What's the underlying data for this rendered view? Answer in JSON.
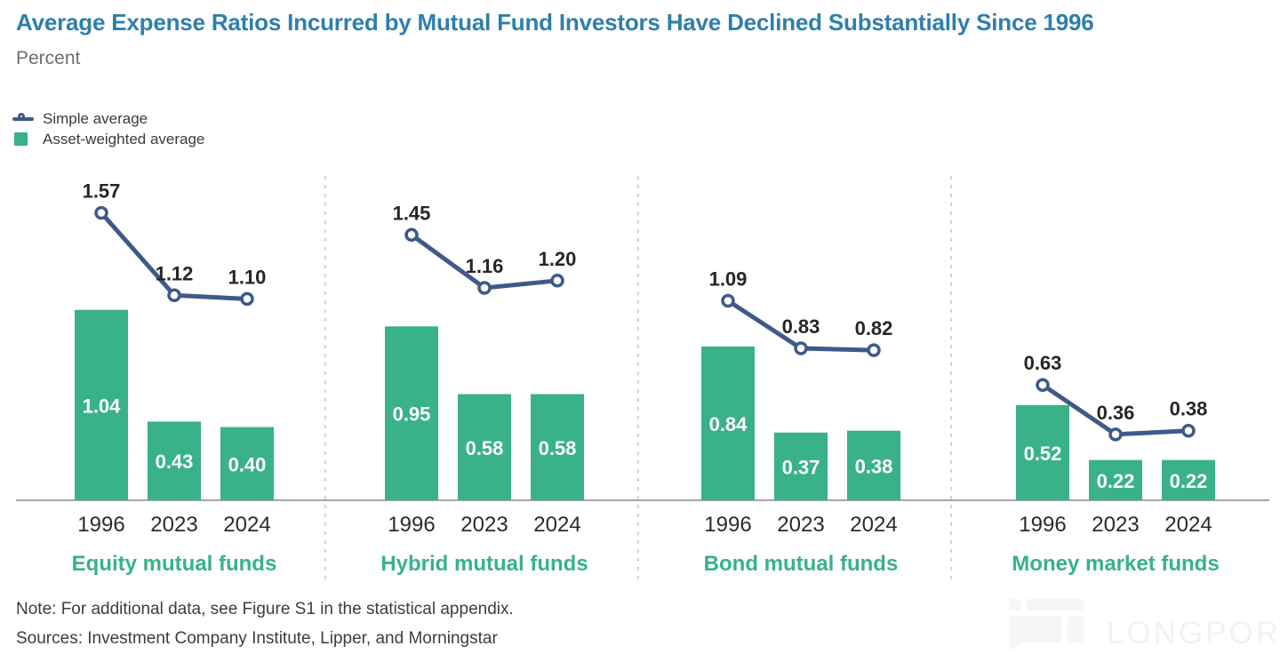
{
  "header": {
    "title": "Average Expense Ratios Incurred by Mutual Fund Investors Have Declined Substantially Since 1996",
    "subtitle": "Percent"
  },
  "legend": {
    "simple": "Simple average",
    "asset_weighted": "Asset-weighted average"
  },
  "chart_data": {
    "type": "bar",
    "overlay": "line",
    "title": "Average Expense Ratios Incurred by Mutual Fund Investors Have Declined Substantially Since 1996",
    "ylabel": "Percent",
    "ylim": [
      0,
      1.8
    ],
    "grid": false,
    "legend_position": "top-left",
    "categories": [
      "1996",
      "2023",
      "2024"
    ],
    "panels": [
      {
        "label": "Equity mutual funds",
        "series": [
          {
            "name": "Simple average",
            "type": "line",
            "values": [
              1.57,
              1.12,
              1.1
            ]
          },
          {
            "name": "Asset-weighted average",
            "type": "bar",
            "values": [
              1.04,
              0.43,
              0.4
            ]
          }
        ]
      },
      {
        "label": "Hybrid mutual funds",
        "series": [
          {
            "name": "Simple average",
            "type": "line",
            "values": [
              1.45,
              1.16,
              1.2
            ]
          },
          {
            "name": "Asset-weighted average",
            "type": "bar",
            "values": [
              0.95,
              0.58,
              0.58
            ]
          }
        ]
      },
      {
        "label": "Bond mutual funds",
        "series": [
          {
            "name": "Simple average",
            "type": "line",
            "values": [
              1.09,
              0.83,
              0.82
            ]
          },
          {
            "name": "Asset-weighted average",
            "type": "bar",
            "values": [
              0.84,
              0.37,
              0.38
            ]
          }
        ]
      },
      {
        "label": "Money market funds",
        "series": [
          {
            "name": "Simple average",
            "type": "line",
            "values": [
              0.63,
              0.36,
              0.38
            ]
          },
          {
            "name": "Asset-weighted average",
            "type": "bar",
            "values": [
              0.52,
              0.22,
              0.22
            ]
          }
        ]
      }
    ]
  },
  "footer": {
    "note": "Note: For additional data, see Figure S1 in the statistical appendix.",
    "sources": "Sources: Investment Company Institute, Lipper, and Morningstar"
  },
  "watermark": {
    "text": "LONGPORT"
  },
  "colors": {
    "title": "#2f7fab",
    "subtitle": "#6e6e6e",
    "bar": "#3ab287",
    "line": "#3e5a8a",
    "marker_fill": "#ffffff",
    "value_label": "#262626",
    "bar_label": "#ffffff",
    "panel_label": "#38b287",
    "year_label": "#2b2b2b",
    "axis": "#a6a6a6",
    "separator": "#c6c6c6",
    "footer_text": "#3d3d3d",
    "watermark": "#f2f2f2"
  }
}
